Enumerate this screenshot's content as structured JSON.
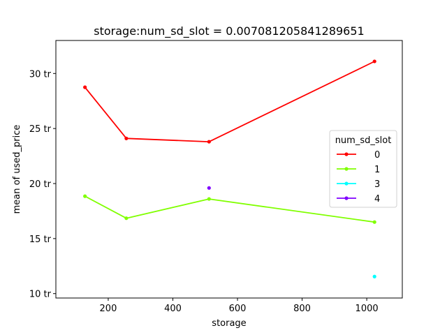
{
  "chart_data": {
    "type": "line",
    "title": "storage:num_sd_slot = 0.007081205841289651",
    "xlabel": "storage",
    "ylabel": "mean of used_price",
    "xlim": [
      38,
      1110
    ],
    "ylim": [
      9.6,
      33.0
    ],
    "x_ticks": [
      200,
      400,
      600,
      800,
      1000
    ],
    "y_ticks": [
      10,
      15,
      20,
      25,
      30
    ],
    "y_tick_suffix": " tr",
    "legend": {
      "title": "num_sd_slot",
      "placement": "center-right"
    },
    "series": [
      {
        "name": "0",
        "color": "#ff0000",
        "points": [
          [
            128,
            28.75
          ],
          [
            256,
            24.1
          ],
          [
            512,
            23.8
          ],
          [
            1024,
            31.1
          ]
        ]
      },
      {
        "name": "1",
        "color": "#80ff00",
        "points": [
          [
            128,
            18.85
          ],
          [
            256,
            16.85
          ],
          [
            512,
            18.6
          ],
          [
            1024,
            16.5
          ]
        ]
      },
      {
        "name": "3",
        "color": "#00ffff",
        "points": [
          [
            1024,
            11.55
          ]
        ]
      },
      {
        "name": "4",
        "color": "#8000ff",
        "points": [
          [
            512,
            19.6
          ]
        ]
      }
    ]
  }
}
